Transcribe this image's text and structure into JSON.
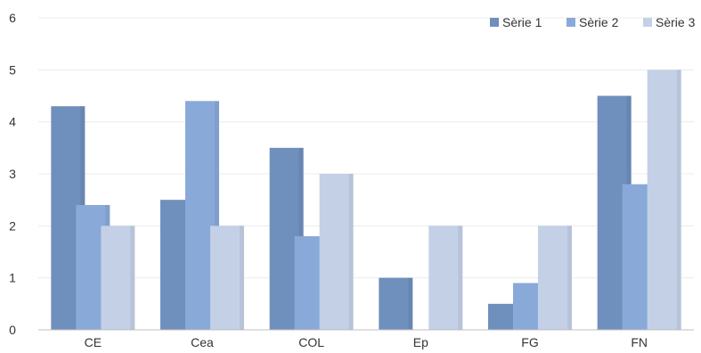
{
  "chart_data": {
    "type": "bar",
    "categories": [
      "CE",
      "Cea",
      "COL",
      "Ep",
      "FG",
      "FN"
    ],
    "series": [
      {
        "name": "Sèrie 1",
        "values": [
          4.3,
          2.5,
          3.5,
          1,
          0.5,
          4.5
        ],
        "color": "#6f8fbd"
      },
      {
        "name": "Sèrie 2",
        "values": [
          2.4,
          4.4,
          1.8,
          0,
          0.9,
          2.8
        ],
        "color": "#89a9d8"
      },
      {
        "name": "Sèrie 3",
        "values": [
          2,
          2,
          3,
          2,
          2,
          5
        ],
        "color": "#c3d0e6"
      }
    ],
    "yticks": [
      "0",
      "1",
      "2",
      "3",
      "4",
      "5",
      "6"
    ],
    "ylim": [
      0,
      6
    ],
    "grid": true,
    "legend_position": "top-right"
  }
}
